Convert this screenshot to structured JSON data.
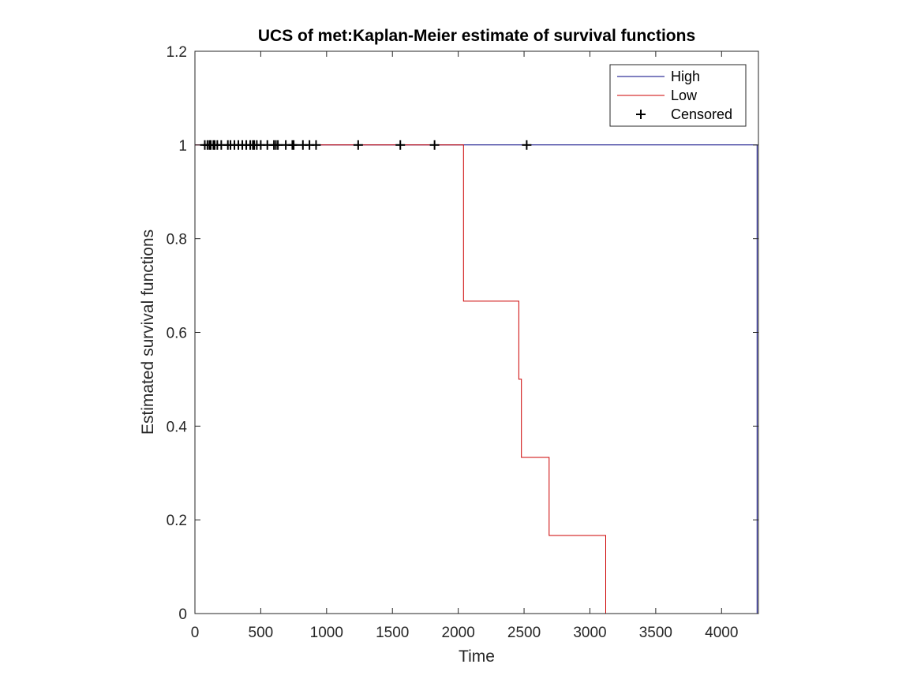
{
  "chart_data": {
    "type": "line",
    "title": "UCS of met:Kaplan-Meier estimate of survival functions",
    "xlabel": "Time",
    "ylabel": "Estimated survival functions",
    "xlim": [
      0,
      4280
    ],
    "ylim": [
      0,
      1.2
    ],
    "x_ticks": [
      0,
      500,
      1000,
      1500,
      2000,
      2500,
      3000,
      3500,
      4000
    ],
    "y_ticks": [
      0,
      0.2,
      0.4,
      0.6,
      0.8,
      1,
      1.2
    ],
    "x_tick_labels": [
      "0",
      "500",
      "1000",
      "1500",
      "2000",
      "2500",
      "3000",
      "3500",
      "4000"
    ],
    "y_tick_labels": [
      "0",
      "0.2",
      "0.4",
      "0.6",
      "0.8",
      "1",
      "1.2"
    ],
    "grid": false,
    "legend_position": "top-right",
    "series": [
      {
        "name": "High",
        "color": "#000080",
        "steps": [
          [
            0,
            1
          ],
          [
            4270,
            1
          ],
          [
            4270,
            0
          ]
        ]
      },
      {
        "name": "Low",
        "color": "#cc0000",
        "steps": [
          [
            0,
            1
          ],
          [
            2040,
            1
          ],
          [
            2040,
            0.6667
          ],
          [
            2460,
            0.6667
          ],
          [
            2460,
            0.5
          ],
          [
            2480,
            0.5
          ],
          [
            2480,
            0.3333
          ],
          [
            2690,
            0.3333
          ],
          [
            2690,
            0.1667
          ],
          [
            3120,
            0.1667
          ],
          [
            3120,
            0
          ]
        ]
      }
    ],
    "censored": {
      "name": "Censored",
      "color": "#000000",
      "points": [
        [
          75,
          1
        ],
        [
          95,
          1
        ],
        [
          110,
          1
        ],
        [
          120,
          1
        ],
        [
          140,
          1
        ],
        [
          150,
          1
        ],
        [
          170,
          1
        ],
        [
          200,
          1
        ],
        [
          250,
          1
        ],
        [
          270,
          1
        ],
        [
          300,
          1
        ],
        [
          330,
          1
        ],
        [
          360,
          1
        ],
        [
          390,
          1
        ],
        [
          420,
          1
        ],
        [
          440,
          1
        ],
        [
          450,
          1
        ],
        [
          470,
          1
        ],
        [
          500,
          1
        ],
        [
          550,
          1
        ],
        [
          600,
          1
        ],
        [
          615,
          1
        ],
        [
          630,
          1
        ],
        [
          690,
          1
        ],
        [
          740,
          1
        ],
        [
          750,
          1
        ],
        [
          820,
          1
        ],
        [
          870,
          1
        ],
        [
          920,
          1
        ],
        [
          1240,
          1
        ],
        [
          1560,
          1
        ],
        [
          1820,
          1
        ],
        [
          2520,
          1
        ]
      ]
    }
  }
}
